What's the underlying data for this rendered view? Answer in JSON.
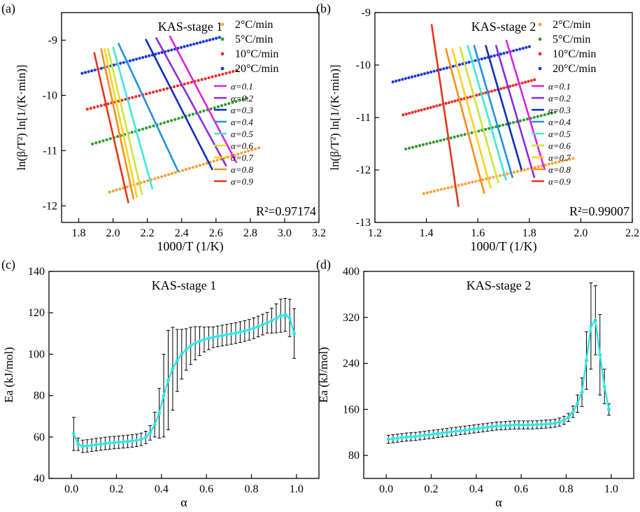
{
  "figure": {
    "panel_labels": [
      "(a)",
      "(b)",
      "(c)",
      "(d)"
    ]
  },
  "chart_data": [
    {
      "panel": "(a)",
      "type": "scatter",
      "title": "KAS-stage 1",
      "xlabel": "1000/T (1/K)",
      "ylabel": "ln(β/T²) ln[1/(K·min)]",
      "xlim": [
        1.7,
        3.2
      ],
      "ylim": [
        -12.3,
        -8.5
      ],
      "xticks": [
        1.8,
        2.0,
        2.2,
        2.4,
        2.6,
        2.8,
        3.0,
        3.2
      ],
      "yticks": [
        -12,
        -11,
        -10,
        -9
      ],
      "annotation": "R²=0.97174",
      "series": [
        {
          "name": "2°C/min",
          "color": "#f7a13c",
          "x_range": [
            1.98,
            2.85
          ],
          "y_range": [
            -11.75,
            -10.95
          ]
        },
        {
          "name": "5°C/min",
          "color": "#2e9b2e",
          "x_range": [
            1.88,
            2.78
          ],
          "y_range": [
            -10.88,
            -10.05
          ]
        },
        {
          "name": "10°C/min",
          "color": "#e8312a",
          "x_range": [
            1.85,
            2.72
          ],
          "y_range": [
            -10.25,
            -9.55
          ]
        },
        {
          "name": "20°C/min",
          "color": "#1a35e0",
          "x_range": [
            1.82,
            2.62
          ],
          "y_range": [
            -9.6,
            -8.95
          ]
        }
      ],
      "alpha_lines": [
        {
          "name": "α=0.1",
          "color": "#e020e0",
          "from": [
            2.33,
            -8.92
          ],
          "to": [
            2.72,
            -11.22
          ]
        },
        {
          "name": "α=0.2",
          "color": "#8a2be2",
          "from": [
            2.25,
            -8.95
          ],
          "to": [
            2.66,
            -11.28
          ]
        },
        {
          "name": "α=0.3",
          "color": "#0a2fb5",
          "from": [
            2.19,
            -8.98
          ],
          "to": [
            2.58,
            -11.35
          ]
        },
        {
          "name": "α=0.4",
          "color": "#1e90e6",
          "from": [
            2.03,
            -9.05
          ],
          "to": [
            2.38,
            -11.38
          ]
        },
        {
          "name": "α=0.5",
          "color": "#3ee8d8",
          "from": [
            2.0,
            -9.12
          ],
          "to": [
            2.23,
            -11.7
          ]
        },
        {
          "name": "α=0.6",
          "color": "#c8e63c",
          "from": [
            1.97,
            -9.15
          ],
          "to": [
            2.17,
            -11.8
          ]
        },
        {
          "name": "α=0.7",
          "color": "#ffd21e",
          "from": [
            1.95,
            -9.15
          ],
          "to": [
            2.14,
            -11.85
          ]
        },
        {
          "name": "α=0.8",
          "color": "#ff8c1a",
          "from": [
            1.93,
            -9.15
          ],
          "to": [
            2.12,
            -11.88
          ]
        },
        {
          "name": "α=0.9",
          "color": "#e8331a",
          "from": [
            1.89,
            -9.22
          ],
          "to": [
            2.09,
            -11.95
          ]
        }
      ]
    },
    {
      "panel": "(b)",
      "type": "scatter",
      "title": "KAS-stage 2",
      "xlabel": "1000/T (1/K)",
      "ylabel": "ln(β/T²) ln[1/(K·min)]",
      "xlim": [
        1.2,
        2.2
      ],
      "ylim": [
        -13,
        -9
      ],
      "xticks": [
        1.2,
        1.4,
        1.6,
        1.8,
        2.0,
        2.2
      ],
      "yticks": [
        -13,
        -12,
        -11,
        -10,
        -9
      ],
      "annotation": "R²=0.99007",
      "series": [
        {
          "name": "2°C/min",
          "color": "#f7a13c",
          "x_range": [
            1.39,
            1.97
          ],
          "y_range": [
            -12.45,
            -11.78
          ]
        },
        {
          "name": "5°C/min",
          "color": "#2e9b2e",
          "x_range": [
            1.32,
            1.9
          ],
          "y_range": [
            -11.6,
            -10.9
          ]
        },
        {
          "name": "10°C/min",
          "color": "#e8312a",
          "x_range": [
            1.31,
            1.82
          ],
          "y_range": [
            -10.95,
            -10.28
          ]
        },
        {
          "name": "20°C/min",
          "color": "#1a35e0",
          "x_range": [
            1.27,
            1.8
          ],
          "y_range": [
            -10.32,
            -9.65
          ]
        }
      ],
      "alpha_lines": [
        {
          "name": "α=0.1",
          "color": "#e020e0",
          "from": [
            1.71,
            -9.52
          ],
          "to": [
            1.86,
            -12.0
          ]
        },
        {
          "name": "α=0.2",
          "color": "#8a2be2",
          "from": [
            1.67,
            -9.62
          ],
          "to": [
            1.82,
            -12.15
          ]
        },
        {
          "name": "α=0.3",
          "color": "#0a2fb5",
          "from": [
            1.63,
            -9.62
          ],
          "to": [
            1.77,
            -12.0
          ]
        },
        {
          "name": "α=0.4",
          "color": "#1e90e6",
          "from": [
            1.585,
            -9.62
          ],
          "to": [
            1.735,
            -12.15
          ]
        },
        {
          "name": "α=0.5",
          "color": "#3ee8d8",
          "from": [
            1.56,
            -9.62
          ],
          "to": [
            1.71,
            -12.2
          ]
        },
        {
          "name": "α=0.6",
          "color": "#c8e63c",
          "from": [
            1.53,
            -9.65
          ],
          "to": [
            1.68,
            -12.25
          ]
        },
        {
          "name": "α=0.7",
          "color": "#ffd21e",
          "from": [
            1.5,
            -9.68
          ],
          "to": [
            1.65,
            -12.35
          ]
        },
        {
          "name": "α=0.8",
          "color": "#ff8c1a",
          "from": [
            1.475,
            -9.68
          ],
          "to": [
            1.625,
            -12.45
          ]
        },
        {
          "name": "α=0.9",
          "color": "#e8331a",
          "from": [
            1.42,
            -9.22
          ],
          "to": [
            1.525,
            -12.7
          ]
        }
      ]
    },
    {
      "panel": "(c)",
      "type": "line",
      "title": "KAS-stage 1",
      "xlabel": "α",
      "ylabel": "Ea (kJ/mol)",
      "xlim": [
        -0.1,
        1.1
      ],
      "ylim": [
        40,
        140
      ],
      "xticks": [
        0.0,
        0.2,
        0.4,
        0.6,
        0.8,
        1.0
      ],
      "yticks": [
        40,
        60,
        80,
        100,
        120,
        140
      ],
      "color": "#2ee6e6",
      "x": [
        0.01,
        0.03,
        0.05,
        0.07,
        0.09,
        0.11,
        0.13,
        0.15,
        0.17,
        0.19,
        0.21,
        0.23,
        0.25,
        0.27,
        0.29,
        0.31,
        0.33,
        0.35,
        0.37,
        0.39,
        0.41,
        0.43,
        0.45,
        0.47,
        0.49,
        0.51,
        0.53,
        0.55,
        0.57,
        0.59,
        0.61,
        0.63,
        0.65,
        0.67,
        0.69,
        0.71,
        0.73,
        0.75,
        0.77,
        0.79,
        0.81,
        0.83,
        0.85,
        0.87,
        0.89,
        0.91,
        0.93,
        0.95,
        0.97,
        0.99
      ],
      "y": [
        61.5,
        56.5,
        55.5,
        55.7,
        56.0,
        56.3,
        56.6,
        56.9,
        57.1,
        57.3,
        57.5,
        57.7,
        57.9,
        58.1,
        58.4,
        58.9,
        59.8,
        62.0,
        66.0,
        71.5,
        80.0,
        87.5,
        93.0,
        97.0,
        100.0,
        102.3,
        104.0,
        105.3,
        106.3,
        107.1,
        107.7,
        108.2,
        108.6,
        109.0,
        109.4,
        109.8,
        110.2,
        110.7,
        111.2,
        111.8,
        112.5,
        113.4,
        114.3,
        115.2,
        116.2,
        117.3,
        118.6,
        119.0,
        117.5,
        110.0
      ],
      "err": [
        8.0,
        3.0,
        3.0,
        3.0,
        3.0,
        3.0,
        3.0,
        3.0,
        3.0,
        3.0,
        3.0,
        3.0,
        3.0,
        3.0,
        3.0,
        3.0,
        3.0,
        3.5,
        6.0,
        12.0,
        20.0,
        24.0,
        20.0,
        15.0,
        12.0,
        10.0,
        9.0,
        8.0,
        7.0,
        6.0,
        5.5,
        5.0,
        5.0,
        5.0,
        5.0,
        5.0,
        5.0,
        5.0,
        5.0,
        5.0,
        5.0,
        5.0,
        5.0,
        5.0,
        6.0,
        7.0,
        8.0,
        8.0,
        9.0,
        12.0
      ]
    },
    {
      "panel": "(d)",
      "type": "line",
      "title": "KAS-stage 2",
      "xlabel": "α",
      "ylabel": "Ea (kJ/mol)",
      "xlim": [
        -0.1,
        1.1
      ],
      "ylim": [
        40,
        400
      ],
      "xticks": [
        0.0,
        0.2,
        0.4,
        0.6,
        0.8,
        1.0
      ],
      "yticks": [
        80,
        160,
        240,
        320,
        400
      ],
      "color": "#2ee6e6",
      "x": [
        0.01,
        0.03,
        0.05,
        0.07,
        0.09,
        0.11,
        0.13,
        0.15,
        0.17,
        0.19,
        0.21,
        0.23,
        0.25,
        0.27,
        0.29,
        0.31,
        0.33,
        0.35,
        0.37,
        0.39,
        0.41,
        0.43,
        0.45,
        0.47,
        0.49,
        0.51,
        0.53,
        0.55,
        0.57,
        0.59,
        0.61,
        0.63,
        0.65,
        0.67,
        0.69,
        0.71,
        0.73,
        0.75,
        0.77,
        0.79,
        0.81,
        0.83,
        0.85,
        0.87,
        0.89,
        0.91,
        0.93,
        0.95,
        0.97,
        0.99
      ],
      "y": [
        108,
        109,
        110,
        111,
        112,
        112.5,
        113,
        114,
        115,
        116,
        117,
        118,
        119,
        120,
        121,
        122,
        123,
        124,
        125,
        126,
        127,
        128,
        129,
        130,
        131,
        131.5,
        132,
        132.5,
        133,
        133,
        133,
        133,
        133,
        133.5,
        134,
        134.5,
        135,
        136,
        138,
        141,
        146,
        156,
        170,
        190,
        245,
        305,
        315,
        255,
        200,
        160
      ],
      "err": [
        7,
        7,
        7,
        7,
        7,
        7,
        7,
        7,
        7,
        7,
        7,
        7,
        7,
        7,
        7,
        7,
        7,
        7,
        7,
        7,
        7,
        7,
        7,
        7,
        7,
        7,
        7,
        7,
        7,
        7,
        7,
        7,
        7,
        7,
        7,
        7,
        7,
        7,
        7,
        7,
        7,
        10,
        15,
        25,
        50,
        75,
        60,
        70,
        30,
        10
      ]
    }
  ]
}
